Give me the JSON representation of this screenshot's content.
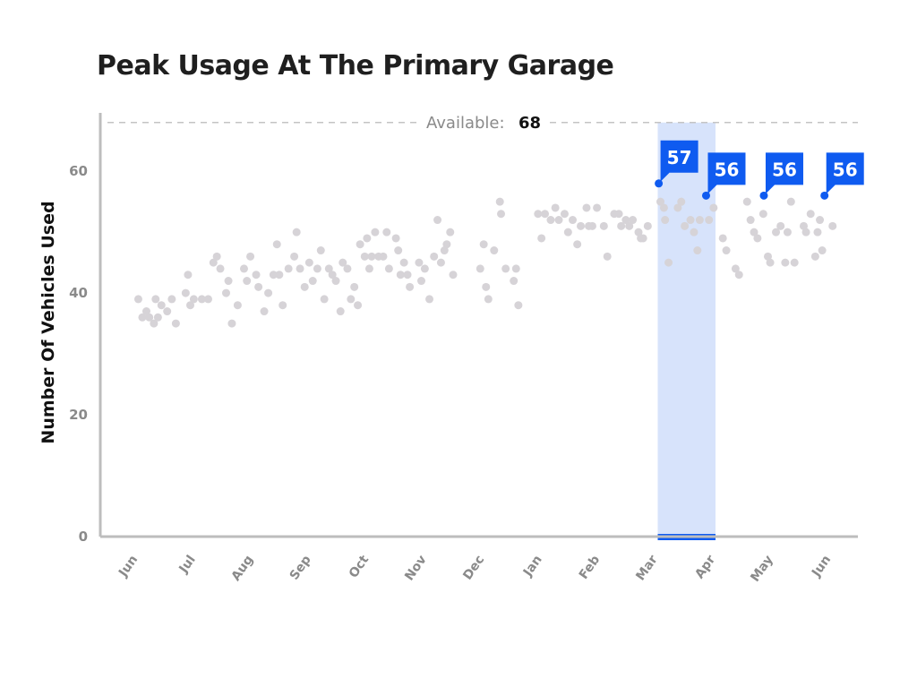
{
  "chart_data": {
    "type": "scatter",
    "title": "Peak Usage At The Primary Garage",
    "ylabel": "Number Of Vehicles Used",
    "xlabel": "",
    "ylim": [
      0,
      69
    ],
    "y_ticks": [
      0,
      20,
      40,
      60
    ],
    "x_ticks": [
      "Jun",
      "Jul",
      "Aug",
      "Sep",
      "Oct",
      "Nov",
      "Dec",
      "Jan",
      "Feb",
      "Mar",
      "Apr",
      "May",
      "Jun"
    ],
    "grid": false,
    "reference_line": {
      "label": "Available:",
      "value": 68
    },
    "highlight_range": [
      "Mar",
      "Apr"
    ],
    "colors": {
      "points": "#d6d3d7",
      "highlight": "#0f5bf0",
      "band": "#d7e3fb",
      "axis": "#bdbdbd"
    },
    "series": [
      {
        "values": [
          [
            0.1,
            39
          ],
          [
            0.17,
            36
          ],
          [
            0.24,
            37
          ],
          [
            0.29,
            36
          ],
          [
            0.37,
            35
          ],
          [
            0.4,
            39
          ],
          [
            0.44,
            36
          ],
          [
            0.5,
            38
          ],
          [
            0.6,
            37
          ],
          [
            0.68,
            39
          ],
          [
            0.75,
            35
          ],
          [
            0.92,
            40
          ],
          [
            0.96,
            43
          ],
          [
            1.0,
            38
          ],
          [
            1.06,
            39
          ],
          [
            1.2,
            39
          ],
          [
            1.31,
            39
          ],
          [
            1.4,
            45
          ],
          [
            1.46,
            46
          ],
          [
            1.52,
            44
          ],
          [
            1.62,
            40
          ],
          [
            1.66,
            42
          ],
          [
            1.72,
            35
          ],
          [
            1.82,
            38
          ],
          [
            1.93,
            44
          ],
          [
            1.98,
            42
          ],
          [
            2.04,
            46
          ],
          [
            2.14,
            43
          ],
          [
            2.18,
            41
          ],
          [
            2.28,
            37
          ],
          [
            2.35,
            40
          ],
          [
            2.44,
            43
          ],
          [
            2.5,
            48
          ],
          [
            2.54,
            43
          ],
          [
            2.6,
            38
          ],
          [
            2.7,
            44
          ],
          [
            2.8,
            46
          ],
          [
            2.84,
            50
          ],
          [
            2.9,
            44
          ],
          [
            2.98,
            41
          ],
          [
            3.06,
            45
          ],
          [
            3.12,
            42
          ],
          [
            3.2,
            44
          ],
          [
            3.26,
            47
          ],
          [
            3.32,
            39
          ],
          [
            3.4,
            44
          ],
          [
            3.46,
            43
          ],
          [
            3.52,
            42
          ],
          [
            3.6,
            37
          ],
          [
            3.64,
            45
          ],
          [
            3.72,
            44
          ],
          [
            3.78,
            39
          ],
          [
            3.84,
            41
          ],
          [
            3.9,
            38
          ],
          [
            3.94,
            48
          ],
          [
            4.02,
            46
          ],
          [
            4.06,
            49
          ],
          [
            4.1,
            44
          ],
          [
            4.14,
            46
          ],
          [
            4.2,
            50
          ],
          [
            4.26,
            46
          ],
          [
            4.34,
            46
          ],
          [
            4.4,
            50
          ],
          [
            4.44,
            44
          ],
          [
            4.56,
            49
          ],
          [
            4.6,
            47
          ],
          [
            4.64,
            43
          ],
          [
            4.7,
            45
          ],
          [
            4.76,
            43
          ],
          [
            4.8,
            41
          ],
          [
            4.96,
            45
          ],
          [
            5.0,
            42
          ],
          [
            5.06,
            44
          ],
          [
            5.14,
            39
          ],
          [
            5.22,
            46
          ],
          [
            5.28,
            52
          ],
          [
            5.34,
            45
          ],
          [
            5.4,
            47
          ],
          [
            5.44,
            48
          ],
          [
            5.5,
            50
          ],
          [
            5.55,
            43
          ],
          [
            6.02,
            44
          ],
          [
            6.08,
            48
          ],
          [
            6.12,
            41
          ],
          [
            6.16,
            39
          ],
          [
            6.26,
            47
          ],
          [
            6.36,
            55
          ],
          [
            6.38,
            53
          ],
          [
            6.46,
            44
          ],
          [
            6.6,
            42
          ],
          [
            6.64,
            44
          ],
          [
            6.68,
            38
          ],
          [
            7.02,
            53
          ],
          [
            7.08,
            49
          ],
          [
            7.14,
            53
          ],
          [
            7.24,
            52
          ],
          [
            7.32,
            54
          ],
          [
            7.38,
            52
          ],
          [
            7.48,
            53
          ],
          [
            7.54,
            50
          ],
          [
            7.62,
            52
          ],
          [
            7.7,
            48
          ],
          [
            7.76,
            51
          ],
          [
            7.86,
            54
          ],
          [
            7.9,
            51
          ],
          [
            7.96,
            51
          ],
          [
            8.04,
            54
          ],
          [
            8.16,
            51
          ],
          [
            8.22,
            46
          ],
          [
            8.34,
            53
          ],
          [
            8.42,
            53
          ],
          [
            8.46,
            51
          ],
          [
            8.54,
            52
          ],
          [
            8.6,
            51
          ],
          [
            8.66,
            52
          ],
          [
            8.76,
            50
          ],
          [
            8.8,
            49
          ],
          [
            8.84,
            49
          ],
          [
            8.92,
            51
          ],
          [
            9.14,
            55
          ],
          [
            9.2,
            54
          ],
          [
            9.22,
            52
          ],
          [
            9.28,
            45
          ],
          [
            9.44,
            54
          ],
          [
            9.5,
            55
          ],
          [
            9.56,
            51
          ],
          [
            9.66,
            52
          ],
          [
            9.72,
            50
          ],
          [
            9.78,
            47
          ],
          [
            9.82,
            52
          ],
          [
            9.98,
            52
          ],
          [
            10.06,
            54
          ],
          [
            10.22,
            49
          ],
          [
            10.28,
            47
          ],
          [
            10.44,
            44
          ],
          [
            10.5,
            43
          ],
          [
            10.64,
            55
          ],
          [
            10.7,
            52
          ],
          [
            10.76,
            50
          ],
          [
            10.82,
            49
          ],
          [
            10.92,
            53
          ],
          [
            11.0,
            46
          ],
          [
            11.04,
            45
          ],
          [
            11.14,
            50
          ],
          [
            11.22,
            51
          ],
          [
            11.3,
            45
          ],
          [
            11.34,
            50
          ],
          [
            11.4,
            55
          ],
          [
            11.46,
            45
          ],
          [
            11.62,
            51
          ],
          [
            11.66,
            50
          ],
          [
            11.74,
            53
          ],
          [
            11.82,
            46
          ],
          [
            11.86,
            50
          ],
          [
            11.9,
            52
          ],
          [
            11.94,
            47
          ],
          [
            12.12,
            51
          ]
        ]
      }
    ],
    "annotations": [
      {
        "x": 9.11,
        "y": 58,
        "label": "57"
      },
      {
        "x": 9.93,
        "y": 56,
        "label": "56"
      },
      {
        "x": 10.93,
        "y": 56,
        "label": "56"
      },
      {
        "x": 11.98,
        "y": 56,
        "label": "56"
      }
    ]
  }
}
